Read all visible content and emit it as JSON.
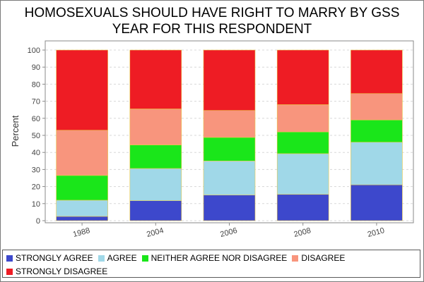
{
  "chart_data": {
    "type": "bar",
    "stacked": true,
    "title_lines": [
      "HOMOSEXUALS SHOULD HAVE RIGHT TO MARRY BY GSS",
      "YEAR FOR THIS RESPONDENT"
    ],
    "xlabel": "",
    "ylabel": "Percent",
    "ylim": [
      0,
      100
    ],
    "yticks": [
      "0",
      "10",
      "20",
      "30",
      "40",
      "50",
      "60",
      "70",
      "80",
      "90",
      "100"
    ],
    "categories": [
      "1988",
      "2004",
      "2006",
      "2008",
      "2010"
    ],
    "grid": true,
    "legend_position": "bottom",
    "series": [
      {
        "name": "STRONGLY AGREE",
        "color": "#3d48cc",
        "values": [
          2.5,
          11.7,
          15.0,
          15.4,
          21.0
        ]
      },
      {
        "name": "AGREE",
        "color": "#a0d8e8",
        "values": [
          9.5,
          18.9,
          20.0,
          23.9,
          25.0
        ]
      },
      {
        "name": "NEITHER AGREE NOR DISAGREE",
        "color": "#1ae61a",
        "values": [
          14.5,
          13.8,
          13.8,
          12.7,
          13.0
        ]
      },
      {
        "name": "DISAGREE",
        "color": "#f8957d",
        "values": [
          26.5,
          21.1,
          15.8,
          16.0,
          15.5
        ]
      },
      {
        "name": "STRONGLY DISAGREE",
        "color": "#ee1c24",
        "values": [
          47.0,
          34.5,
          35.4,
          32.0,
          25.5
        ]
      }
    ]
  }
}
